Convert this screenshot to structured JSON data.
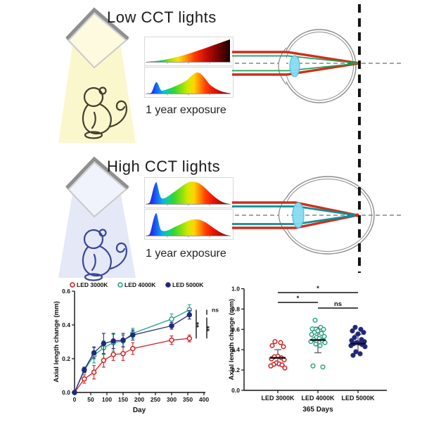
{
  "figure": {
    "low_section": {
      "title": "Low CCT lights",
      "exposure_label": "1 year exposure"
    },
    "high_section": {
      "title": "High CCT lights",
      "exposure_label": "1 year exposure"
    }
  },
  "icons": {
    "lamp": "ceiling-light-panel",
    "monkey": "monkey-outline",
    "eye_top": "eye-cross-section-focus-on-retina",
    "eye_bottom": "elongated-eye-cross-section-focus-before-retina",
    "retina_line": "retina-reference-dashed-line"
  },
  "colors": {
    "led3000": "#cf2121",
    "led4000": "#2aa183",
    "led5000": "#20297d",
    "low_beam": "#fbf6c6",
    "high_beam": "#e1e6f6",
    "ray_red": "#cf2d1c",
    "ray_green": "#1fa052",
    "ray_teal": "#0c8f96",
    "lens_cyan": "#86dcf2"
  },
  "chart_data": [
    {
      "type": "line",
      "title": "",
      "xlabel": "Day",
      "ylabel": "Axial length change (mm)",
      "xlim": [
        0,
        400
      ],
      "ylim": [
        0,
        0.6
      ],
      "xticks": [
        0,
        50,
        100,
        150,
        200,
        250,
        300,
        350,
        400
      ],
      "yticks": [
        0.0,
        0.2,
        0.4,
        0.6
      ],
      "grid": false,
      "legend_position": "top",
      "x": [
        0,
        30,
        60,
        90,
        120,
        150,
        180,
        300,
        355
      ],
      "series": [
        {
          "name": "LED 3000K",
          "color": "#cf2121",
          "marker": "open-circle",
          "values": [
            0,
            0.08,
            0.12,
            0.19,
            0.225,
            0.23,
            0.26,
            0.31,
            0.32
          ],
          "errors": [
            0,
            0.025,
            0.04,
            0.04,
            0.035,
            0.04,
            0.035,
            0.025,
            0.02
          ]
        },
        {
          "name": "LED 4000K",
          "color": "#2aa183",
          "marker": "open-circle",
          "values": [
            0,
            0.13,
            0.22,
            0.265,
            0.295,
            0.305,
            0.35,
            0.435,
            0.49
          ],
          "errors": [
            0,
            0.015,
            0.045,
            0.04,
            0.05,
            0.035,
            0.03,
            0.03,
            0.03
          ]
        },
        {
          "name": "LED 5000K",
          "color": "#20297d",
          "marker": "solid-circle",
          "values": [
            0,
            0.135,
            0.235,
            0.29,
            0.305,
            0.31,
            0.34,
            0.395,
            0.46
          ],
          "errors": [
            0,
            0.015,
            0.035,
            0.06,
            0.045,
            0.04,
            0.03,
            0.02,
            0.025
          ]
        }
      ],
      "significance": [
        {
          "between": [
            "LED 4000K",
            "LED 3000K"
          ],
          "label": "**"
        },
        {
          "between": [
            "LED 4000K",
            "LED 5000K"
          ],
          "label": "ns"
        },
        {
          "between": [
            "LED 5000K",
            "LED 3000K"
          ],
          "label": "**"
        }
      ]
    },
    {
      "type": "scatter",
      "title": "",
      "xlabel": "365 Days",
      "ylabel": "Axial length change (mm)",
      "ylim": [
        0,
        1.0
      ],
      "yticks": [
        0.0,
        0.2,
        0.4,
        0.6,
        0.8,
        1.0
      ],
      "grid": false,
      "categories": [
        "LED 3000K",
        "LED 4000K",
        "LED 5000K"
      ],
      "groups": [
        {
          "name": "LED 3000K",
          "color": "#cf2121",
          "marker": "open-circle",
          "points": [
            0.48,
            0.47,
            0.44,
            0.43,
            0.335,
            0.33,
            0.32,
            0.31,
            0.3,
            0.27,
            0.26,
            0.255,
            0.25,
            0.24,
            0.22
          ],
          "mean": 0.32,
          "sd_low": 0.25,
          "sd_high": 0.4
        },
        {
          "name": "LED 4000K",
          "color": "#2aa183",
          "marker": "open-circle",
          "points": [
            0.69,
            0.62,
            0.605,
            0.6,
            0.585,
            0.57,
            0.56,
            0.55,
            0.53,
            0.52,
            0.51,
            0.5,
            0.49,
            0.48,
            0.47,
            0.455,
            0.44,
            0.24,
            0.23
          ],
          "mean": 0.495,
          "sd_low": 0.37,
          "sd_high": 0.62
        },
        {
          "name": "LED 5000K",
          "color": "#20297d",
          "marker": "solid-circle",
          "points": [
            0.62,
            0.6,
            0.585,
            0.57,
            0.555,
            0.52,
            0.5,
            0.49,
            0.48,
            0.47,
            0.465,
            0.46,
            0.45,
            0.44,
            0.43,
            0.38,
            0.36,
            0.345
          ],
          "mean": 0.46,
          "sd_low": 0.37,
          "sd_high": 0.55
        }
      ],
      "significance": [
        {
          "between": [
            0,
            2
          ],
          "label": "*"
        },
        {
          "between": [
            0,
            1
          ],
          "label": "*"
        },
        {
          "between": [
            1,
            2
          ],
          "label": "ns"
        }
      ]
    }
  ]
}
